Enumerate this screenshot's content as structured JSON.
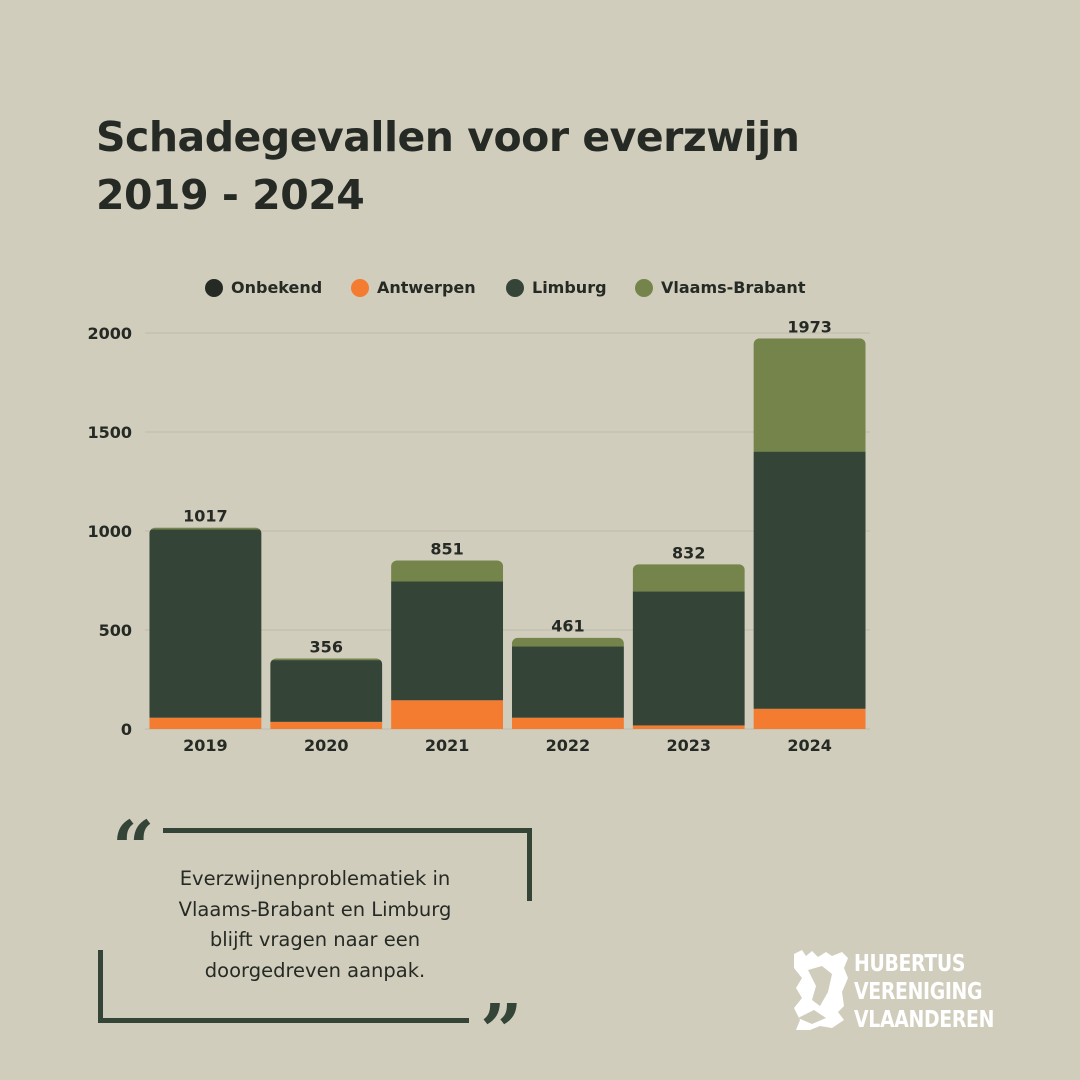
{
  "title": {
    "line1": "Schadegevallen voor everzwijn",
    "line2": "2019 - 2024"
  },
  "colors": {
    "background": "#d1cdbd",
    "onbekend": "#262a24",
    "antwerpen": "#f47c30",
    "limburg": "#344537",
    "vlaams_brabant": "#75844b",
    "text": "#262a24"
  },
  "chart_data": {
    "type": "bar",
    "stacked": true,
    "title": "Schadegevallen voor everzwijn 2019 - 2024",
    "xlabel": "",
    "ylabel": "",
    "ylim": [
      0,
      2000
    ],
    "yticks": [
      0,
      500,
      1000,
      1500,
      2000
    ],
    "grid": true,
    "legend_position": "top",
    "categories": [
      "2019",
      "2020",
      "2021",
      "2022",
      "2023",
      "2024"
    ],
    "series": [
      {
        "name": "Onbekend",
        "color": "#262a24",
        "values": [
          0,
          0,
          0,
          0,
          0,
          0
        ]
      },
      {
        "name": "Antwerpen",
        "color": "#f47c30",
        "values": [
          57,
          36,
          145,
          57,
          18,
          102
        ]
      },
      {
        "name": "Limburg",
        "color": "#344537",
        "values": [
          951,
          312,
          600,
          360,
          677,
          1299
        ]
      },
      {
        "name": "Vlaams-Brabant",
        "color": "#75844b",
        "values": [
          9,
          8,
          106,
          44,
          137,
          572
        ]
      }
    ],
    "totals": [
      1017,
      356,
      851,
      461,
      832,
      1973
    ]
  },
  "quote": {
    "open_mark": "“",
    "close_mark": "”",
    "lines": [
      "Everzwijnenproblematiek in",
      "Vlaams-Brabant en Limburg",
      "blijft vragen naar een",
      "doorgedreven aanpak."
    ]
  },
  "logo": {
    "line1": "HUBERTUS",
    "line2": "VERENIGING",
    "line3": "VLAANDEREN"
  }
}
